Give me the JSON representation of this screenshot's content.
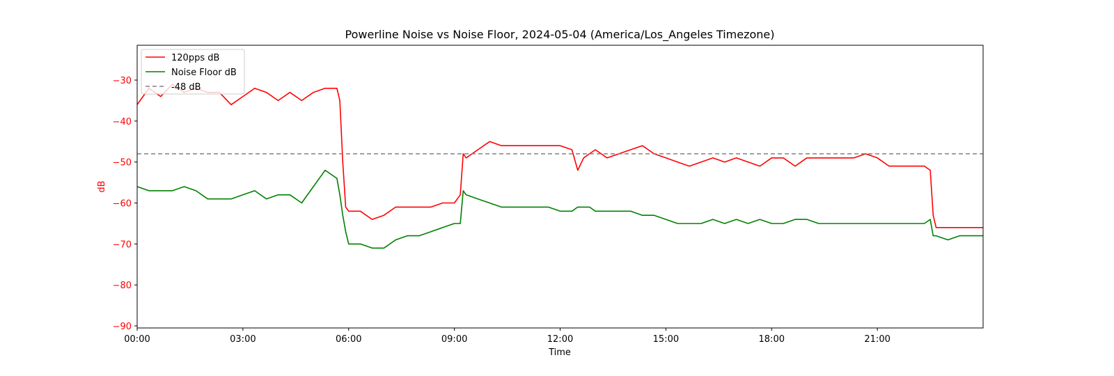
{
  "chart_data": {
    "type": "line",
    "title": "Powerline Noise vs Noise Floor, 2024-05-04 (America/Los_Angeles Timezone)",
    "xlabel": "Time",
    "ylabel": "dB",
    "ylabel_color": "#ff0000",
    "ytick_color": "#ff0000",
    "xlim": [
      "00:00",
      "24:00"
    ],
    "ylim": [
      -90.5,
      -21.5
    ],
    "xticks": [
      "00:00",
      "03:00",
      "06:00",
      "09:00",
      "12:00",
      "15:00",
      "18:00",
      "21:00"
    ],
    "yticks": [
      -90,
      -80,
      -70,
      -60,
      -50,
      -40,
      -30
    ],
    "ytick_labels": [
      "−90",
      "−80",
      "−70",
      "−60",
      "−50",
      "−40",
      "−30"
    ],
    "grid": false,
    "legend_placement": "upper-left",
    "series": [
      {
        "name": "120pps dB",
        "color": "#ff0000",
        "style": "solid",
        "x": [
          "00:00",
          "00:20",
          "00:40",
          "01:00",
          "01:20",
          "01:40",
          "02:00",
          "02:20",
          "02:40",
          "03:00",
          "03:20",
          "03:40",
          "04:00",
          "04:20",
          "04:40",
          "05:00",
          "05:20",
          "05:40",
          "05:45",
          "05:50",
          "05:55",
          "06:00",
          "06:20",
          "06:40",
          "07:00",
          "07:20",
          "07:40",
          "08:00",
          "08:20",
          "08:40",
          "09:00",
          "09:10",
          "09:15",
          "09:20",
          "09:40",
          "10:00",
          "10:20",
          "10:40",
          "11:00",
          "11:20",
          "11:40",
          "12:00",
          "12:20",
          "12:30",
          "12:40",
          "12:50",
          "13:00",
          "13:20",
          "13:40",
          "14:00",
          "14:20",
          "14:40",
          "15:00",
          "15:20",
          "15:40",
          "16:00",
          "16:20",
          "16:40",
          "17:00",
          "17:20",
          "17:40",
          "18:00",
          "18:20",
          "18:40",
          "19:00",
          "19:20",
          "19:40",
          "20:00",
          "20:20",
          "20:40",
          "21:00",
          "21:20",
          "21:40",
          "22:00",
          "22:20",
          "22:30",
          "22:35",
          "22:40",
          "23:00",
          "23:20",
          "23:40",
          "24:00"
        ],
        "values": [
          -36,
          -32,
          -34,
          -31,
          -33,
          -32,
          -33,
          -33,
          -36,
          -34,
          -32,
          -33,
          -35,
          -33,
          -35,
          -33,
          -32,
          -32,
          -35,
          -50,
          -61,
          -62,
          -62,
          -64,
          -63,
          -61,
          -61,
          -61,
          -61,
          -60,
          -60,
          -58,
          -48,
          -49,
          -47,
          -45,
          -46,
          -46,
          -46,
          -46,
          -46,
          -46,
          -47,
          -52,
          -49,
          -48,
          -47,
          -49,
          -48,
          -47,
          -46,
          -48,
          -49,
          -50,
          -51,
          -50,
          -49,
          -50,
          -49,
          -50,
          -51,
          -49,
          -49,
          -51,
          -49,
          -49,
          -49,
          -49,
          -49,
          -48,
          -49,
          -51,
          -51,
          -51,
          -51,
          -52,
          -63,
          -66,
          -66,
          -66,
          -66,
          -66
        ]
      },
      {
        "name": "Noise Floor dB",
        "color": "#008000",
        "style": "solid",
        "x": [
          "00:00",
          "00:20",
          "00:40",
          "01:00",
          "01:20",
          "01:40",
          "02:00",
          "02:20",
          "02:40",
          "03:00",
          "03:20",
          "03:40",
          "04:00",
          "04:20",
          "04:40",
          "05:00",
          "05:20",
          "05:40",
          "05:45",
          "05:50",
          "05:55",
          "06:00",
          "06:20",
          "06:40",
          "07:00",
          "07:20",
          "07:40",
          "08:00",
          "08:20",
          "08:40",
          "09:00",
          "09:10",
          "09:15",
          "09:20",
          "09:40",
          "10:00",
          "10:20",
          "10:40",
          "11:00",
          "11:20",
          "11:40",
          "12:00",
          "12:20",
          "12:30",
          "12:40",
          "12:50",
          "13:00",
          "13:20",
          "13:40",
          "14:00",
          "14:20",
          "14:40",
          "15:00",
          "15:20",
          "15:40",
          "16:00",
          "16:20",
          "16:40",
          "17:00",
          "17:20",
          "17:40",
          "18:00",
          "18:20",
          "18:40",
          "19:00",
          "19:20",
          "19:40",
          "20:00",
          "20:20",
          "20:40",
          "21:00",
          "21:20",
          "21:40",
          "22:00",
          "22:20",
          "22:30",
          "22:35",
          "22:40",
          "23:00",
          "23:20",
          "23:40",
          "24:00"
        ],
        "values": [
          -56,
          -57,
          -57,
          -57,
          -56,
          -57,
          -59,
          -59,
          -59,
          -58,
          -57,
          -59,
          -58,
          -58,
          -60,
          -56,
          -52,
          -54,
          -58,
          -63,
          -67,
          -70,
          -70,
          -71,
          -71,
          -69,
          -68,
          -68,
          -67,
          -66,
          -65,
          -65,
          -57,
          -58,
          -59,
          -60,
          -61,
          -61,
          -61,
          -61,
          -61,
          -62,
          -62,
          -61,
          -61,
          -61,
          -62,
          -62,
          -62,
          -62,
          -63,
          -63,
          -64,
          -65,
          -65,
          -65,
          -64,
          -65,
          -64,
          -65,
          -64,
          -65,
          -65,
          -64,
          -64,
          -65,
          -65,
          -65,
          -65,
          -65,
          -65,
          -65,
          -65,
          -65,
          -65,
          -64,
          -68,
          -68,
          -69,
          -68,
          -68,
          -68
        ]
      },
      {
        "name": "-48 dB",
        "color": "#808080",
        "style": "dashed",
        "constant": -48
      }
    ]
  }
}
